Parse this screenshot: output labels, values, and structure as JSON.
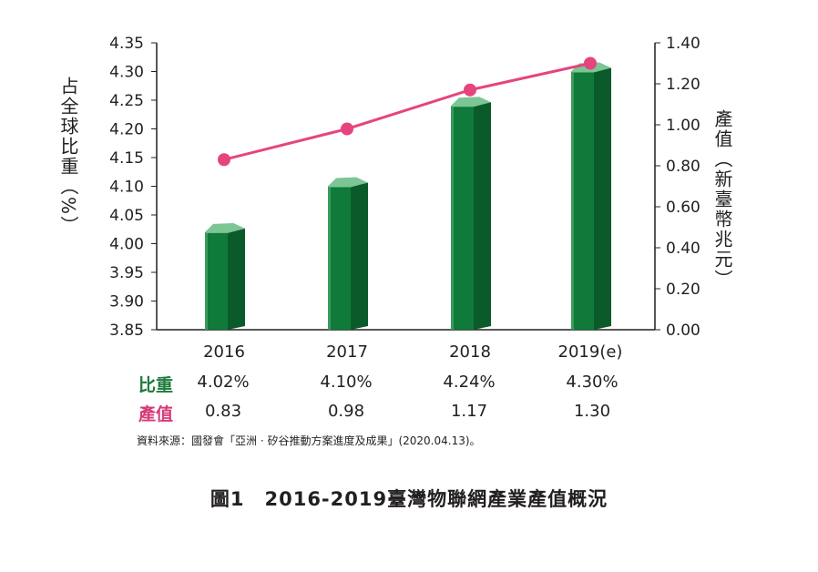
{
  "chart_data": {
    "type": "bar",
    "categories": [
      "2016",
      "2017",
      "2018",
      "2019(e)"
    ],
    "series": [
      {
        "name": "比重",
        "values": [
          4.02,
          4.1,
          4.24,
          4.3
        ],
        "axis": "left",
        "mark": "bar",
        "color": "#1e7a3c"
      },
      {
        "name": "產值",
        "values": [
          0.83,
          0.98,
          1.17,
          1.3
        ],
        "axis": "right",
        "mark": "line",
        "color": "#e6447f"
      }
    ],
    "ylabel": "占全球比重（%）",
    "ylabel_right": "產值（新臺幣兆元）",
    "ylim": [
      3.85,
      4.35
    ],
    "ylim_right": [
      0.0,
      1.4
    ],
    "yticks": [
      "4.35",
      "4.30",
      "4.25",
      "4.20",
      "4.15",
      "4.10",
      "4.05",
      "4.00",
      "3.95",
      "3.90",
      "3.85"
    ],
    "yticks_right": [
      "1.40",
      "1.20",
      "1.00",
      "0.80",
      "0.60",
      "0.40",
      "0.20",
      "0.00"
    ],
    "grid": false,
    "legend": "none"
  },
  "table": {
    "share_label": "比重",
    "share_values": [
      "4.02%",
      "4.10%",
      "4.24%",
      "4.30%"
    ],
    "value_label": "產值",
    "value_values": [
      "0.83",
      "0.98",
      "1.17",
      "1.30"
    ]
  },
  "source": "資料來源：國發會「亞洲 · 矽谷推動方案進度及成果」(2020.04.13)。",
  "caption": "圖1　2016-2019臺灣物聯網產業產值概況",
  "colors": {
    "bar_front": "#0f7a3a",
    "bar_side": "#0b5a2a",
    "bar_light": "#3a9a5c",
    "bar_top": "#7cc594",
    "line": "#e6447f"
  }
}
